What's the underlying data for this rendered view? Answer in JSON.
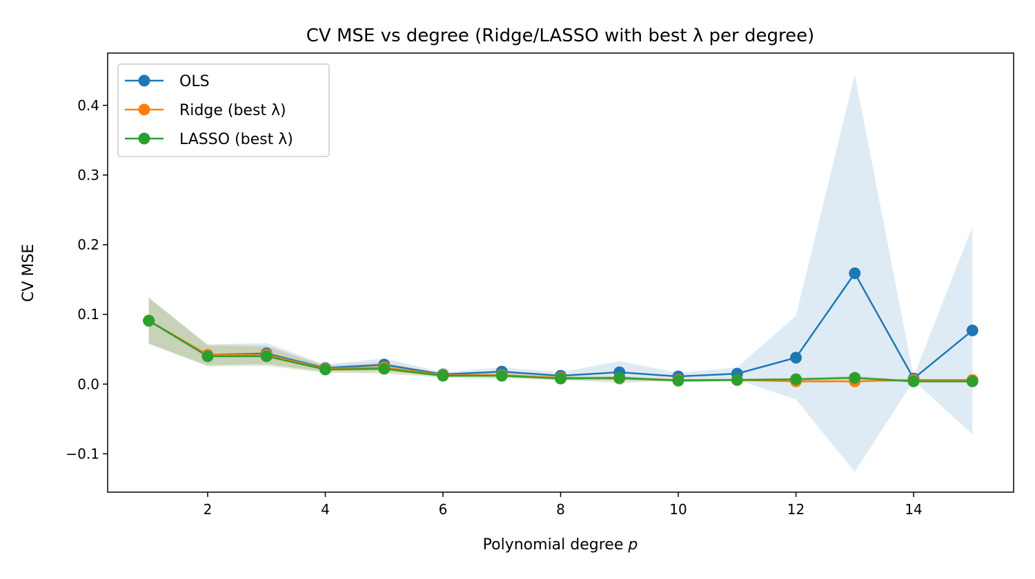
{
  "chart_data": {
    "type": "line",
    "title": "CV MSE vs degree (Ridge/LASSO with best λ per degree)",
    "xlabel": "Polynomial degree p",
    "ylabel": "CV MSE",
    "xlim": [
      0.3,
      15.7
    ],
    "ylim": [
      -0.155,
      0.475
    ],
    "x": [
      1,
      2,
      3,
      4,
      5,
      6,
      7,
      8,
      9,
      10,
      11,
      12,
      13,
      14,
      15
    ],
    "x_ticks": [
      2,
      4,
      6,
      8,
      10,
      12,
      14
    ],
    "x_tick_labels": [
      "2",
      "4",
      "6",
      "8",
      "10",
      "12",
      "14"
    ],
    "y_ticks": [
      -0.1,
      0.0,
      0.1,
      0.2,
      0.3,
      0.4
    ],
    "y_tick_labels": [
      "−0.1",
      "0.0",
      "0.1",
      "0.2",
      "0.3",
      "0.4"
    ],
    "grid": false,
    "legend_position": "top-left",
    "series": [
      {
        "name": "OLS",
        "color": "#1f77b4",
        "values": [
          0.091,
          0.042,
          0.044,
          0.023,
          0.028,
          0.014,
          0.018,
          0.012,
          0.017,
          0.011,
          0.015,
          0.038,
          0.159,
          0.008,
          0.077
        ],
        "band_lower": [
          0.058,
          0.027,
          0.029,
          0.018,
          0.019,
          0.011,
          0.012,
          0.007,
          0.001,
          0.006,
          0.006,
          -0.022,
          -0.126,
          0.005,
          -0.072
        ],
        "band_upper": [
          0.124,
          0.057,
          0.059,
          0.028,
          0.037,
          0.017,
          0.024,
          0.017,
          0.033,
          0.016,
          0.024,
          0.098,
          0.444,
          0.011,
          0.226
        ]
      },
      {
        "name": "Ridge (best λ)",
        "color": "#ff7f0e",
        "values": [
          0.091,
          0.042,
          0.042,
          0.022,
          0.024,
          0.013,
          0.013,
          0.009,
          0.008,
          0.006,
          0.006,
          0.004,
          0.004,
          0.006,
          0.006
        ],
        "band_lower": [
          0.058,
          0.027,
          0.028,
          0.017,
          0.016,
          0.01,
          0.009,
          0.006,
          0.005,
          0.004,
          0.004,
          0.002,
          0.002,
          0.004,
          0.004
        ],
        "band_upper": [
          0.124,
          0.057,
          0.056,
          0.027,
          0.032,
          0.016,
          0.017,
          0.012,
          0.011,
          0.008,
          0.008,
          0.006,
          0.006,
          0.008,
          0.008
        ]
      },
      {
        "name": "LASSO (best λ)",
        "color": "#2ca02c",
        "values": [
          0.091,
          0.04,
          0.04,
          0.021,
          0.022,
          0.012,
          0.012,
          0.008,
          0.009,
          0.005,
          0.006,
          0.007,
          0.009,
          0.004,
          0.004
        ],
        "band_lower": [
          0.058,
          0.025,
          0.026,
          0.016,
          0.015,
          0.009,
          0.008,
          0.005,
          0.006,
          0.003,
          0.004,
          0.005,
          0.006,
          0.002,
          0.002
        ],
        "band_upper": [
          0.124,
          0.055,
          0.054,
          0.026,
          0.029,
          0.015,
          0.016,
          0.011,
          0.012,
          0.007,
          0.008,
          0.009,
          0.012,
          0.006,
          0.006
        ]
      }
    ]
  }
}
